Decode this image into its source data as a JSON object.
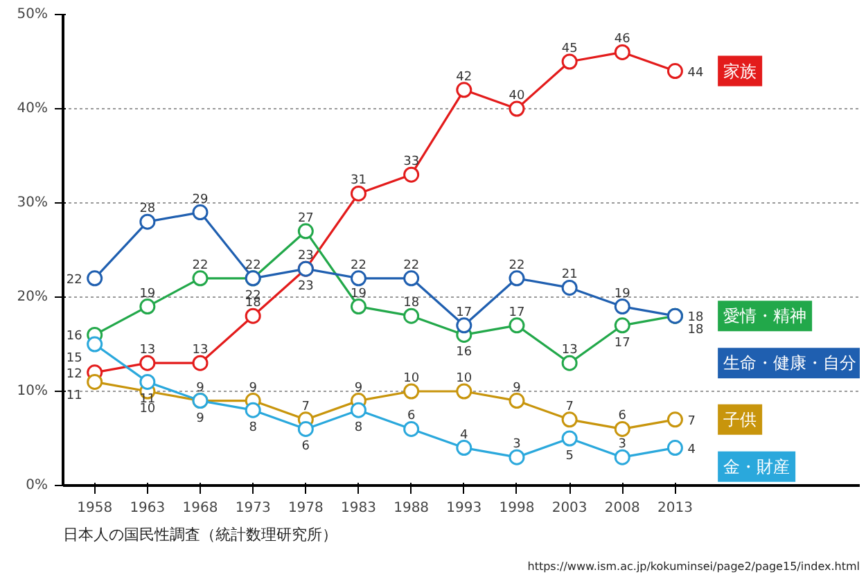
{
  "chart_data": {
    "type": "line",
    "categories": [
      "1958",
      "1963",
      "1968",
      "1973",
      "1978",
      "1983",
      "1988",
      "1993",
      "1998",
      "2003",
      "2008",
      "2013"
    ],
    "series": [
      {
        "name": "家族",
        "color": "#e31b1b",
        "values": [
          12,
          13,
          13,
          18,
          23,
          31,
          33,
          42,
          40,
          45,
          46,
          44
        ]
      },
      {
        "name": "愛情・精神",
        "color": "#22a84a",
        "values": [
          16,
          19,
          22,
          22,
          27,
          19,
          18,
          16,
          17,
          13,
          17,
          18
        ]
      },
      {
        "name": "生命・健康・自分",
        "color": "#1f5fb0",
        "values": [
          22,
          28,
          29,
          22,
          23,
          22,
          22,
          17,
          22,
          21,
          19,
          18
        ]
      },
      {
        "name": "子供",
        "color": "#c8950c",
        "values": [
          11,
          10,
          9,
          9,
          7,
          9,
          10,
          10,
          9,
          7,
          6,
          7
        ]
      },
      {
        "name": "金・財産",
        "color": "#2aa8dc",
        "values": [
          15,
          11,
          9,
          8,
          6,
          8,
          6,
          4,
          3,
          5,
          3,
          4
        ]
      }
    ],
    "ylim": [
      0,
      50
    ],
    "yticks": [
      {
        "value": 0,
        "label": "0%"
      },
      {
        "value": 10,
        "label": "10%"
      },
      {
        "value": 20,
        "label": "20%"
      },
      {
        "value": 30,
        "label": "30%"
      },
      {
        "value": 40,
        "label": "40%"
      },
      {
        "value": 50,
        "label": "50%"
      }
    ],
    "grid": "y",
    "marker": "circle",
    "line_style": "solid",
    "data_labels": true,
    "annotations": [
      "日本人の国民性調査（統計数理研究所）",
      "https://www.ism.ac.jp/kokuminsei/page2/page15/index.html"
    ]
  }
}
